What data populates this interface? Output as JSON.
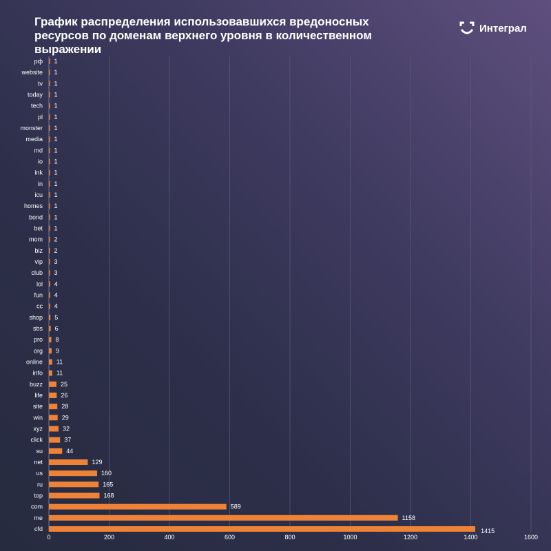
{
  "header": {
    "title": "График распределения использовавшихся вредоносных ресурсов по доменам верхнего уровня в количественном выражении",
    "logo_text": "Интеграл"
  },
  "colors": {
    "bar": "#ee8237",
    "grid": "#5a5d7a",
    "text": "#ffffff"
  },
  "chart_data": {
    "type": "bar",
    "orientation": "horizontal",
    "title": "График распределения использовавшихся вредоносных ресурсов по доменам верхнего уровня в количественном выражении",
    "categories": [
      "рф",
      "website",
      "tv",
      "today",
      "tech",
      "pl",
      "monster",
      "media",
      "md",
      "io",
      "ink",
      "in",
      "icu",
      "homes",
      "bond",
      "bet",
      "mom",
      "biz",
      "vip",
      "club",
      "lol",
      "fun",
      "cc",
      "shop",
      "sbs",
      "pro",
      "org",
      "online",
      "info",
      "buzz",
      "life",
      "site",
      "win",
      "xyz",
      "click",
      "su",
      "net",
      "us",
      "ru",
      "top",
      "com",
      "me",
      "cfd"
    ],
    "values": [
      1,
      1,
      1,
      1,
      1,
      1,
      1,
      1,
      1,
      1,
      1,
      1,
      1,
      1,
      1,
      1,
      2,
      2,
      3,
      3,
      4,
      4,
      4,
      5,
      6,
      8,
      9,
      11,
      11,
      25,
      26,
      28,
      29,
      32,
      37,
      44,
      129,
      160,
      165,
      168,
      589,
      1158,
      1415
    ],
    "xlim": [
      0,
      1600
    ],
    "xticks": [
      0,
      200,
      400,
      600,
      800,
      1000,
      1200,
      1400,
      1600
    ],
    "grid": true,
    "legend": "none"
  }
}
